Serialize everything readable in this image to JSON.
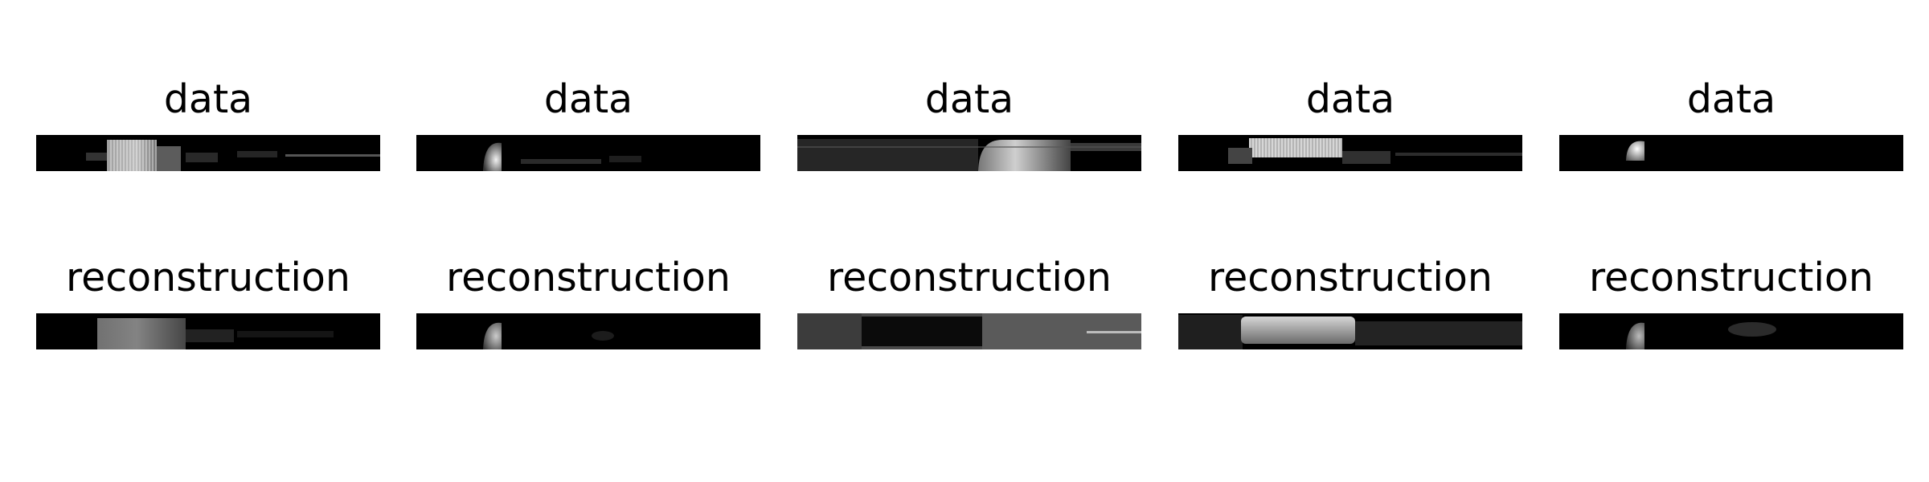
{
  "figure": {
    "rows": [
      {
        "title": "data",
        "panels": [
          {
            "title": "data",
            "image": "spectrogram-data-1"
          },
          {
            "title": "data",
            "image": "spectrogram-data-2"
          },
          {
            "title": "data",
            "image": "spectrogram-data-3"
          },
          {
            "title": "data",
            "image": "spectrogram-data-4"
          },
          {
            "title": "data",
            "image": "spectrogram-data-5"
          }
        ]
      },
      {
        "title": "reconstruction",
        "panels": [
          {
            "title": "reconstruction",
            "image": "spectrogram-reconstruction-1"
          },
          {
            "title": "reconstruction",
            "image": "spectrogram-reconstruction-2"
          },
          {
            "title": "reconstruction",
            "image": "spectrogram-reconstruction-3"
          },
          {
            "title": "reconstruction",
            "image": "spectrogram-reconstruction-4"
          },
          {
            "title": "reconstruction",
            "image": "spectrogram-reconstruction-5"
          }
        ]
      }
    ],
    "colors": {
      "background": "#ffffff",
      "image_background": "#000000",
      "text": "#000000"
    }
  }
}
